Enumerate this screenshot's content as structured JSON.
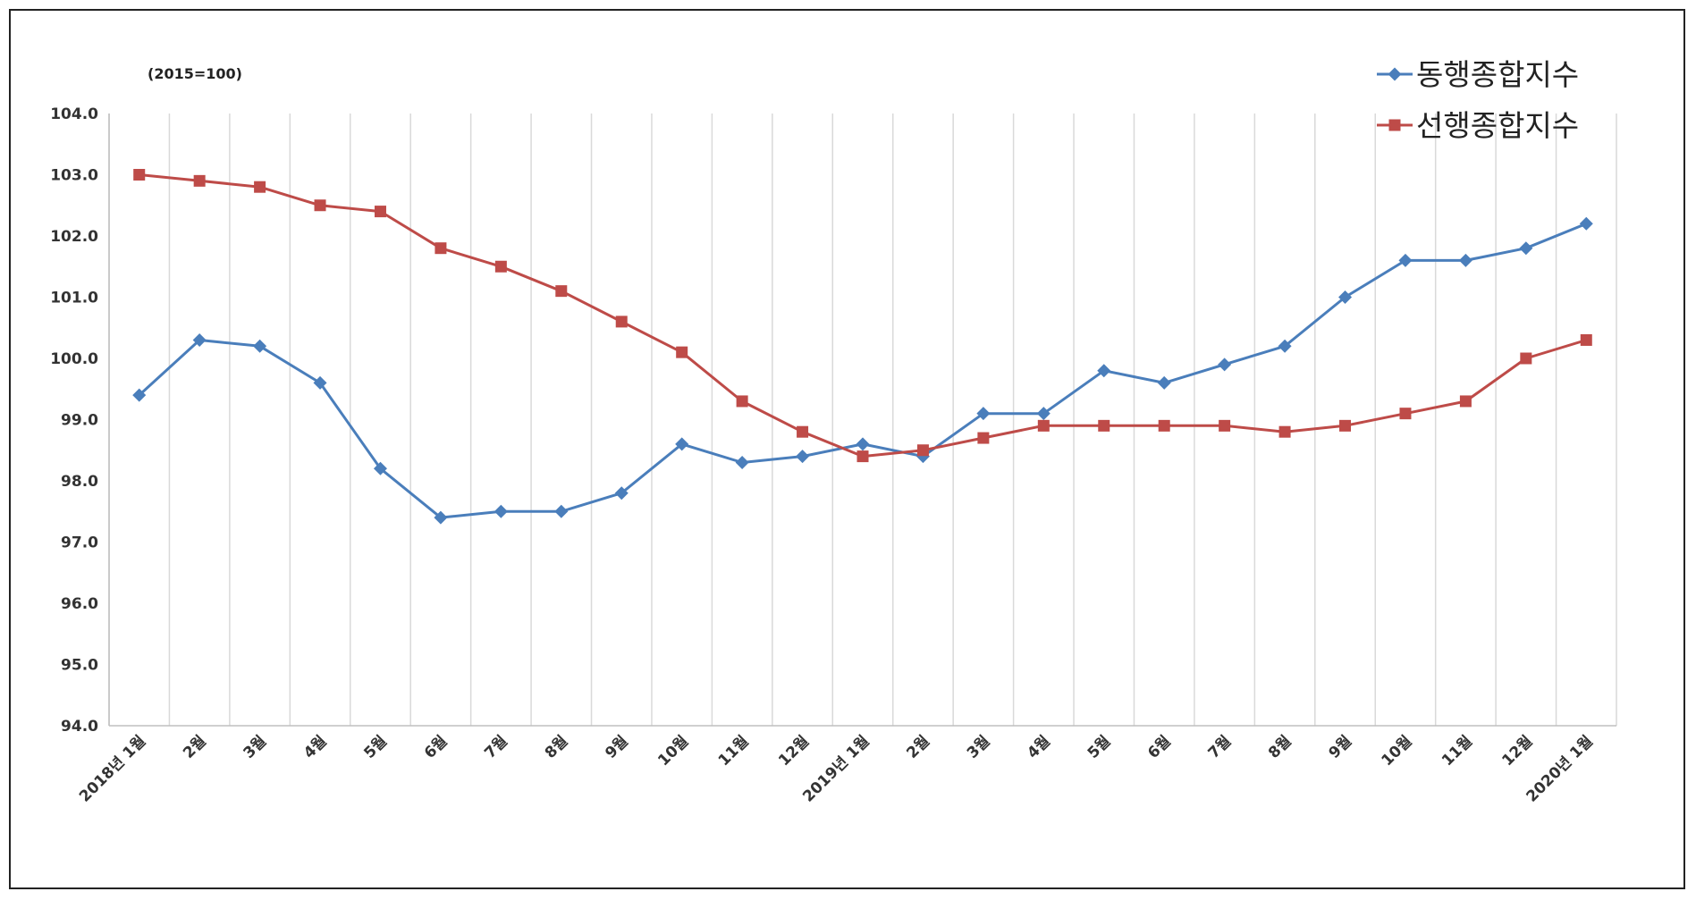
{
  "chart_data": {
    "type": "line",
    "unit_note": "(2015=100)",
    "categories": [
      "2018년 1월",
      "2월",
      "3월",
      "4월",
      "5월",
      "6월",
      "7월",
      "8월",
      "9월",
      "10월",
      "11월",
      "12월",
      "2019년 1월",
      "2월",
      "3월",
      "4월",
      "5월",
      "6월",
      "7월",
      "8월",
      "9월",
      "10월",
      "11월",
      "12월",
      "2020년 1월"
    ],
    "series": [
      {
        "name": "동행종합지수",
        "color": "#4a7ebb",
        "marker": "diamond",
        "values": [
          99.4,
          100.3,
          100.2,
          99.6,
          98.2,
          97.4,
          97.5,
          97.5,
          97.8,
          98.6,
          98.3,
          98.4,
          98.6,
          98.4,
          99.1,
          99.1,
          99.8,
          99.6,
          99.9,
          100.2,
          101.0,
          101.6,
          101.6,
          101.8,
          102.2
        ]
      },
      {
        "name": "선행종합지수",
        "color": "#be4b48",
        "marker": "square",
        "values": [
          103.0,
          102.9,
          102.8,
          102.5,
          102.4,
          101.8,
          101.5,
          101.1,
          100.6,
          100.1,
          99.3,
          98.8,
          98.4,
          98.5,
          98.7,
          98.9,
          98.9,
          98.9,
          98.9,
          98.8,
          98.9,
          99.1,
          99.3,
          100.0,
          100.3
        ]
      }
    ],
    "ylim": [
      94.0,
      104.0
    ],
    "ytick_step": 1.0,
    "yticks": [
      "94.0",
      "95.0",
      "96.0",
      "97.0",
      "98.0",
      "99.0",
      "100.0",
      "101.0",
      "102.0",
      "103.0",
      "104.0"
    ],
    "grid": "vertical",
    "legend_position": "top-right",
    "xlabel": "",
    "ylabel": ""
  }
}
